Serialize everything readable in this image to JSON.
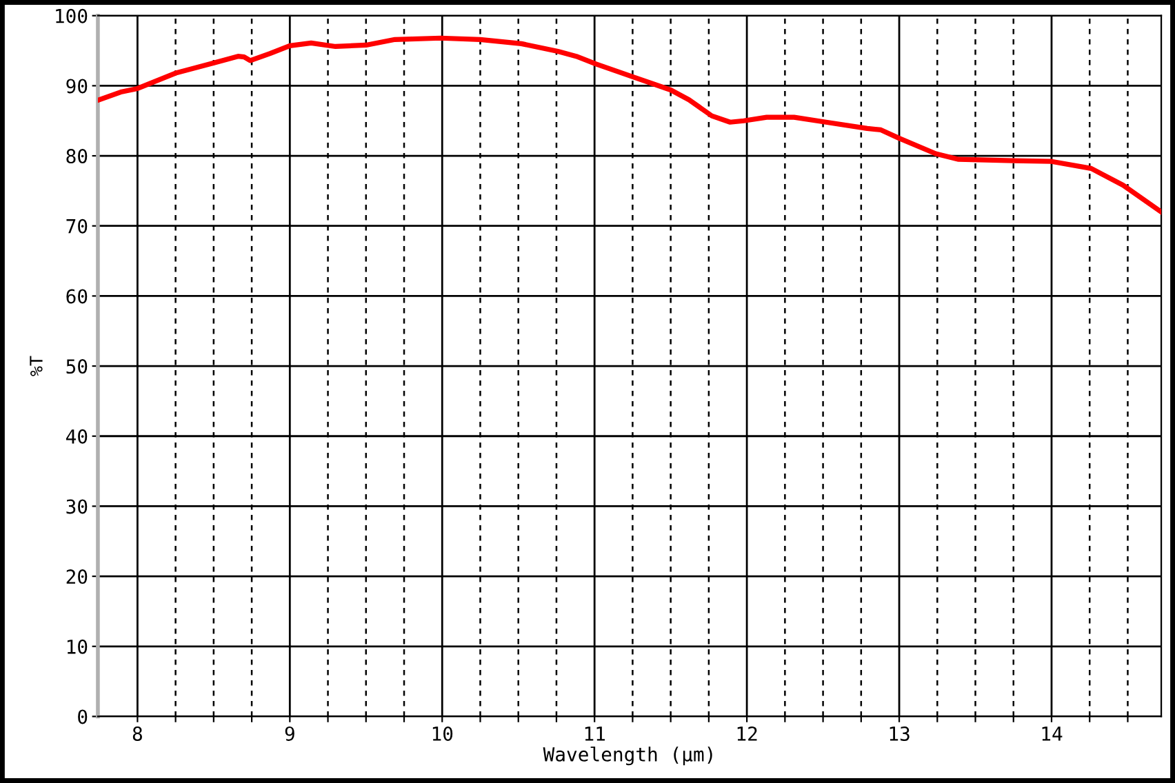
{
  "chart_data": {
    "type": "line",
    "xlabel": "Wavelength (μm)",
    "ylabel": "%T",
    "x": [
      7.75,
      7.89,
      8.0,
      8.25,
      8.51,
      8.66,
      8.7,
      8.74,
      8.87,
      9.0,
      9.14,
      9.3,
      9.5,
      9.69,
      9.99,
      10.25,
      10.52,
      10.76,
      10.88,
      11.01,
      11.26,
      11.5,
      11.62,
      11.77,
      11.89,
      11.98,
      12.13,
      12.31,
      12.52,
      12.79,
      12.88,
      13.0,
      13.24,
      13.39,
      13.75,
      14.0,
      14.26,
      14.47,
      14.72
    ],
    "series": [
      {
        "color": "#ff0000",
        "values": [
          88.0,
          89.1,
          89.6,
          91.8,
          93.3,
          94.2,
          94.1,
          93.6,
          94.6,
          95.7,
          96.1,
          95.6,
          95.8,
          96.6,
          96.8,
          96.6,
          96.0,
          94.9,
          94.2,
          93.1,
          91.2,
          89.4,
          88.0,
          85.7,
          84.8,
          85.0,
          85.5,
          85.5,
          84.8,
          83.9,
          83.7,
          82.5,
          80.3,
          79.5,
          79.3,
          79.2,
          78.2,
          75.8,
          72.0
        ]
      }
    ],
    "xlim": [
      7.74,
      14.72
    ],
    "ylim": [
      0,
      100
    ],
    "xticks": [
      8,
      {
        "value": 8.25,
        "label": null
      },
      {
        "value": 8.5,
        "label": null
      },
      {
        "value": 8.75,
        "label": null
      },
      9,
      {
        "value": 9.25,
        "label": null
      },
      {
        "value": 9.5,
        "label": null
      },
      {
        "value": 9.75,
        "label": null
      },
      10,
      {
        "value": 10.25,
        "label": null
      },
      {
        "value": 10.5,
        "label": null
      },
      {
        "value": 10.75,
        "label": null
      },
      11,
      {
        "value": 11.25,
        "label": null
      },
      {
        "value": 11.5,
        "label": null
      },
      {
        "value": 11.75,
        "label": null
      },
      12,
      {
        "value": 12.25,
        "label": null
      },
      {
        "value": 12.5,
        "label": null
      },
      {
        "value": 12.75,
        "label": null
      },
      13,
      {
        "value": 13.25,
        "label": null
      },
      {
        "value": 13.5,
        "label": null
      },
      {
        "value": 13.75,
        "label": null
      },
      14,
      {
        "value": 14.25,
        "label": null
      },
      {
        "value": 14.5,
        "label": null
      }
    ],
    "yticks": [
      0,
      10,
      20,
      30,
      40,
      50,
      60,
      70,
      80,
      90,
      100
    ],
    "grid": true,
    "legend": false,
    "marker": "none",
    "line_style": "solid"
  }
}
